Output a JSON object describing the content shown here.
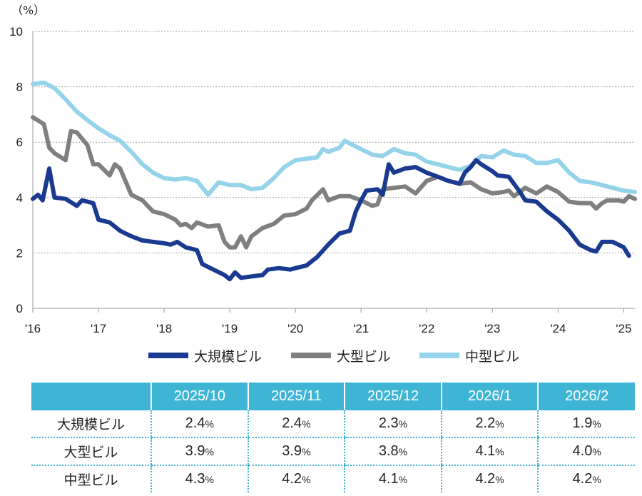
{
  "chart_data": {
    "type": "line",
    "unit_label": "（%）",
    "ylim": [
      0,
      10
    ],
    "y_ticks": [
      "0",
      "2",
      "4",
      "6",
      "8",
      "10"
    ],
    "grid": true,
    "x_ticks": [
      {
        "label": "'16",
        "x": 2016.0
      },
      {
        "label": "'17",
        "x": 2017.0
      },
      {
        "label": "'18",
        "x": 2018.0
      },
      {
        "label": "'19",
        "x": 2019.0
      },
      {
        "label": "'20",
        "x": 2020.0
      },
      {
        "label": "'21",
        "x": 2021.0
      },
      {
        "label": "'22",
        "x": 2022.0
      },
      {
        "label": "'23",
        "x": 2023.0
      },
      {
        "label": "'24",
        "x": 2024.0
      },
      {
        "label": "'25",
        "x": 2025.0
      }
    ],
    "xlim": [
      2016.0,
      2025.17
    ],
    "legend_position": "bottom",
    "series": [
      {
        "name": "大規模ビル",
        "color": "#1a3a8f",
        "points": [
          [
            2016.0,
            3.95
          ],
          [
            2016.08,
            4.1
          ],
          [
            2016.15,
            3.9
          ],
          [
            2016.25,
            5.05
          ],
          [
            2016.33,
            4.0
          ],
          [
            2016.5,
            3.95
          ],
          [
            2016.67,
            3.7
          ],
          [
            2016.75,
            3.9
          ],
          [
            2016.92,
            3.8
          ],
          [
            2017.0,
            3.2
          ],
          [
            2017.17,
            3.1
          ],
          [
            2017.33,
            2.8
          ],
          [
            2017.5,
            2.6
          ],
          [
            2017.67,
            2.45
          ],
          [
            2017.83,
            2.4
          ],
          [
            2018.0,
            2.35
          ],
          [
            2018.1,
            2.3
          ],
          [
            2018.2,
            2.4
          ],
          [
            2018.33,
            2.2
          ],
          [
            2018.5,
            2.1
          ],
          [
            2018.58,
            1.6
          ],
          [
            2018.75,
            1.4
          ],
          [
            2018.92,
            1.2
          ],
          [
            2019.0,
            1.05
          ],
          [
            2019.08,
            1.3
          ],
          [
            2019.17,
            1.1
          ],
          [
            2019.33,
            1.15
          ],
          [
            2019.5,
            1.2
          ],
          [
            2019.58,
            1.4
          ],
          [
            2019.75,
            1.45
          ],
          [
            2019.92,
            1.4
          ],
          [
            2020.0,
            1.45
          ],
          [
            2020.17,
            1.55
          ],
          [
            2020.33,
            1.85
          ],
          [
            2020.5,
            2.3
          ],
          [
            2020.67,
            2.7
          ],
          [
            2020.83,
            2.8
          ],
          [
            2020.92,
            3.5
          ],
          [
            2021.0,
            3.9
          ],
          [
            2021.08,
            4.25
          ],
          [
            2021.25,
            4.3
          ],
          [
            2021.33,
            4.1
          ],
          [
            2021.42,
            5.2
          ],
          [
            2021.5,
            4.9
          ],
          [
            2021.67,
            5.05
          ],
          [
            2021.83,
            5.1
          ],
          [
            2022.0,
            4.9
          ],
          [
            2022.17,
            4.75
          ],
          [
            2022.33,
            4.6
          ],
          [
            2022.5,
            4.5
          ],
          [
            2022.58,
            4.9
          ],
          [
            2022.67,
            5.1
          ],
          [
            2022.75,
            5.35
          ],
          [
            2022.83,
            5.2
          ],
          [
            2023.0,
            4.95
          ],
          [
            2023.08,
            4.8
          ],
          [
            2023.25,
            4.75
          ],
          [
            2023.42,
            4.2
          ],
          [
            2023.5,
            3.9
          ],
          [
            2023.67,
            3.85
          ],
          [
            2023.83,
            3.5
          ],
          [
            2024.0,
            3.2
          ],
          [
            2024.17,
            2.8
          ],
          [
            2024.33,
            2.3
          ],
          [
            2024.5,
            2.1
          ],
          [
            2024.58,
            2.05
          ],
          [
            2024.67,
            2.4
          ],
          [
            2024.75,
            2.4
          ],
          [
            2024.83,
            2.4
          ],
          [
            2024.92,
            2.3
          ],
          [
            2025.0,
            2.2
          ],
          [
            2025.08,
            1.9
          ]
        ]
      },
      {
        "name": "大型ビル",
        "color": "#7f7f7f",
        "points": [
          [
            2016.0,
            6.9
          ],
          [
            2016.17,
            6.65
          ],
          [
            2016.25,
            5.8
          ],
          [
            2016.33,
            5.6
          ],
          [
            2016.5,
            5.35
          ],
          [
            2016.58,
            6.4
          ],
          [
            2016.67,
            6.35
          ],
          [
            2016.83,
            5.9
          ],
          [
            2016.92,
            5.2
          ],
          [
            2017.0,
            5.2
          ],
          [
            2017.17,
            4.8
          ],
          [
            2017.25,
            5.2
          ],
          [
            2017.33,
            5.05
          ],
          [
            2017.5,
            4.1
          ],
          [
            2017.67,
            3.9
          ],
          [
            2017.83,
            3.5
          ],
          [
            2018.0,
            3.4
          ],
          [
            2018.17,
            3.2
          ],
          [
            2018.25,
            3.0
          ],
          [
            2018.33,
            3.05
          ],
          [
            2018.42,
            2.9
          ],
          [
            2018.5,
            3.1
          ],
          [
            2018.67,
            2.95
          ],
          [
            2018.83,
            3.0
          ],
          [
            2018.92,
            2.4
          ],
          [
            2019.0,
            2.2
          ],
          [
            2019.08,
            2.2
          ],
          [
            2019.17,
            2.6
          ],
          [
            2019.25,
            2.2
          ],
          [
            2019.33,
            2.6
          ],
          [
            2019.5,
            2.9
          ],
          [
            2019.67,
            3.05
          ],
          [
            2019.83,
            3.35
          ],
          [
            2020.0,
            3.4
          ],
          [
            2020.17,
            3.6
          ],
          [
            2020.25,
            3.9
          ],
          [
            2020.42,
            4.3
          ],
          [
            2020.5,
            3.9
          ],
          [
            2020.67,
            4.05
          ],
          [
            2020.83,
            4.05
          ],
          [
            2021.0,
            3.9
          ],
          [
            2021.17,
            3.7
          ],
          [
            2021.25,
            3.75
          ],
          [
            2021.33,
            4.3
          ],
          [
            2021.5,
            4.35
          ],
          [
            2021.67,
            4.4
          ],
          [
            2021.83,
            4.15
          ],
          [
            2022.0,
            4.6
          ],
          [
            2022.17,
            4.75
          ],
          [
            2022.33,
            4.6
          ],
          [
            2022.5,
            4.5
          ],
          [
            2022.67,
            4.55
          ],
          [
            2022.83,
            4.3
          ],
          [
            2023.0,
            4.15
          ],
          [
            2023.17,
            4.2
          ],
          [
            2023.25,
            4.25
          ],
          [
            2023.33,
            4.05
          ],
          [
            2023.5,
            4.35
          ],
          [
            2023.67,
            4.15
          ],
          [
            2023.83,
            4.4
          ],
          [
            2024.0,
            4.2
          ],
          [
            2024.17,
            3.85
          ],
          [
            2024.33,
            3.8
          ],
          [
            2024.5,
            3.8
          ],
          [
            2024.58,
            3.6
          ],
          [
            2024.67,
            3.8
          ],
          [
            2024.75,
            3.9
          ],
          [
            2024.83,
            3.9
          ],
          [
            2024.92,
            3.9
          ],
          [
            2025.0,
            3.85
          ],
          [
            2025.08,
            4.05
          ],
          [
            2025.17,
            3.95
          ]
        ]
      },
      {
        "name": "中型ビル",
        "color": "#94d3ea",
        "points": [
          [
            2016.0,
            8.1
          ],
          [
            2016.17,
            8.15
          ],
          [
            2016.33,
            7.95
          ],
          [
            2016.5,
            7.55
          ],
          [
            2016.67,
            7.1
          ],
          [
            2016.83,
            6.8
          ],
          [
            2017.0,
            6.5
          ],
          [
            2017.17,
            6.25
          ],
          [
            2017.33,
            6.05
          ],
          [
            2017.5,
            5.65
          ],
          [
            2017.67,
            5.2
          ],
          [
            2017.83,
            4.9
          ],
          [
            2018.0,
            4.7
          ],
          [
            2018.17,
            4.65
          ],
          [
            2018.33,
            4.7
          ],
          [
            2018.5,
            4.6
          ],
          [
            2018.67,
            4.1
          ],
          [
            2018.83,
            4.55
          ],
          [
            2019.0,
            4.45
          ],
          [
            2019.17,
            4.45
          ],
          [
            2019.33,
            4.3
          ],
          [
            2019.5,
            4.35
          ],
          [
            2019.67,
            4.7
          ],
          [
            2019.83,
            5.1
          ],
          [
            2020.0,
            5.35
          ],
          [
            2020.17,
            5.4
          ],
          [
            2020.33,
            5.45
          ],
          [
            2020.42,
            5.75
          ],
          [
            2020.5,
            5.65
          ],
          [
            2020.67,
            5.8
          ],
          [
            2020.75,
            6.05
          ],
          [
            2020.83,
            5.95
          ],
          [
            2021.0,
            5.75
          ],
          [
            2021.17,
            5.55
          ],
          [
            2021.33,
            5.5
          ],
          [
            2021.5,
            5.75
          ],
          [
            2021.67,
            5.6
          ],
          [
            2021.83,
            5.55
          ],
          [
            2022.0,
            5.3
          ],
          [
            2022.17,
            5.2
          ],
          [
            2022.33,
            5.1
          ],
          [
            2022.5,
            5.0
          ],
          [
            2022.67,
            5.15
          ],
          [
            2022.83,
            5.5
          ],
          [
            2023.0,
            5.45
          ],
          [
            2023.17,
            5.7
          ],
          [
            2023.33,
            5.55
          ],
          [
            2023.5,
            5.5
          ],
          [
            2023.67,
            5.25
          ],
          [
            2023.83,
            5.25
          ],
          [
            2024.0,
            5.35
          ],
          [
            2024.17,
            4.9
          ],
          [
            2024.33,
            4.6
          ],
          [
            2024.5,
            4.55
          ],
          [
            2024.67,
            4.45
          ],
          [
            2024.83,
            4.35
          ],
          [
            2025.0,
            4.25
          ],
          [
            2025.17,
            4.2
          ]
        ]
      }
    ]
  },
  "table": {
    "headers": [
      "2025/10",
      "2025/11",
      "2025/12",
      "2026/1",
      "2026/2"
    ],
    "pct_sign": "%",
    "rows": [
      {
        "label": "大規模ビル",
        "values": [
          "2.4",
          "2.4",
          "2.3",
          "2.2",
          "1.9"
        ]
      },
      {
        "label": "大型ビル",
        "values": [
          "3.9",
          "3.9",
          "3.8",
          "4.1",
          "4.0"
        ]
      },
      {
        "label": "中型ビル",
        "values": [
          "4.3",
          "4.2",
          "4.1",
          "4.2",
          "4.2"
        ]
      }
    ]
  }
}
